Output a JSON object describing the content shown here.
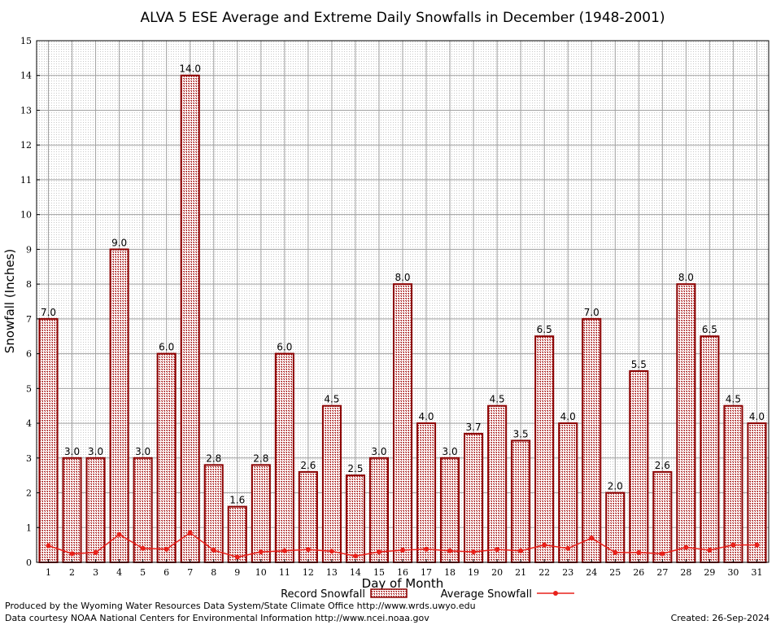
{
  "chart_data": {
    "type": "bar",
    "title": "ALVA 5 ESE Average and Extreme Daily Snowfalls in December (1948-2001)",
    "xlabel": "Day of Month",
    "ylabel": "Snowfall (Inches)",
    "ylim": [
      0,
      15
    ],
    "yticks": [
      "0",
      "1",
      "2",
      "3",
      "4",
      "5",
      "6",
      "7",
      "8",
      "9",
      "10",
      "11",
      "12",
      "13",
      "14",
      "15"
    ],
    "categories": [
      "1",
      "2",
      "3",
      "4",
      "5",
      "6",
      "7",
      "8",
      "9",
      "10",
      "11",
      "12",
      "13",
      "14",
      "15",
      "16",
      "17",
      "18",
      "19",
      "20",
      "21",
      "22",
      "23",
      "24",
      "25",
      "26",
      "27",
      "28",
      "29",
      "30",
      "31"
    ],
    "grid": true,
    "legend_position": "bottom",
    "colors": {
      "bar_edge": "#8b0000",
      "bar_fill": "#b03030",
      "line": "#e8201a"
    },
    "series": [
      {
        "name": "Record Snowfall",
        "type": "bar",
        "values": [
          7.0,
          3.0,
          3.0,
          9.0,
          3.0,
          6.0,
          14.0,
          2.8,
          1.6,
          2.8,
          6.0,
          2.6,
          4.5,
          2.5,
          3.0,
          8.0,
          4.0,
          3.0,
          3.7,
          4.5,
          3.5,
          6.5,
          4.0,
          7.0,
          2.0,
          5.5,
          2.6,
          8.0,
          6.5,
          4.5,
          4.0
        ],
        "labels": [
          "7.0",
          "3.0",
          "3.0",
          "9.0",
          "3.0",
          "6.0",
          "14.0",
          "2.8",
          "1.6",
          "2.8",
          "6.0",
          "2.6",
          "4.5",
          "2.5",
          "3.0",
          "8.0",
          "4.0",
          "3.0",
          "3.7",
          "4.5",
          "3.5",
          "6.5",
          "4.0",
          "7.0",
          "2.0",
          "5.5",
          "2.6",
          "8.0",
          "6.5",
          "4.5",
          "4.0"
        ]
      },
      {
        "name": "Average Snowfall",
        "type": "line",
        "values": [
          0.48,
          0.25,
          0.28,
          0.8,
          0.4,
          0.38,
          0.85,
          0.35,
          0.15,
          0.3,
          0.33,
          0.37,
          0.32,
          0.18,
          0.3,
          0.35,
          0.38,
          0.33,
          0.3,
          0.37,
          0.33,
          0.5,
          0.4,
          0.7,
          0.28,
          0.28,
          0.25,
          0.43,
          0.35,
          0.5,
          0.5
        ]
      }
    ]
  },
  "footer": {
    "produced_by": "Produced by the Wyoming Water Resources Data System/State Climate Office http://www.wrds.uwyo.edu",
    "courtesy": "Data courtesy NOAA National Centers for Environmental Information http://www.ncei.noaa.gov",
    "created": "Created: 26-Sep-2024"
  }
}
